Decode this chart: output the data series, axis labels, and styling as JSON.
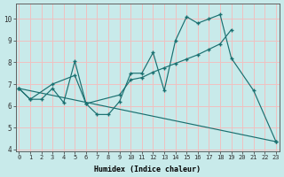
{
  "bg_color": "#c8eaea",
  "grid_color": "#f0c0c0",
  "line_color": "#1a7070",
  "xlabel": "Humidex (Indice chaleur)",
  "xlim": [
    -0.3,
    23.3
  ],
  "ylim": [
    3.9,
    10.7
  ],
  "xticks": [
    0,
    1,
    2,
    3,
    4,
    5,
    6,
    7,
    8,
    9,
    10,
    11,
    12,
    13,
    14,
    15,
    16,
    17,
    18,
    19,
    20,
    21,
    22,
    23
  ],
  "yticks": [
    4,
    5,
    6,
    7,
    8,
    9,
    10
  ],
  "line1_x": [
    0,
    1,
    2,
    3,
    4,
    5,
    6,
    7,
    8,
    9,
    10,
    11,
    12,
    13,
    14,
    15,
    16,
    17,
    18,
    19,
    21,
    23
  ],
  "line1_y": [
    6.8,
    6.3,
    6.3,
    6.8,
    6.15,
    8.05,
    6.1,
    5.6,
    5.6,
    6.2,
    7.5,
    7.5,
    8.45,
    6.7,
    9.0,
    10.1,
    9.8,
    10.0,
    10.2,
    8.2,
    6.7,
    4.35
  ],
  "line2_x": [
    0,
    1,
    3,
    5,
    6,
    9,
    10,
    11,
    12,
    13,
    14,
    15,
    16,
    17,
    18,
    19
  ],
  "line2_y": [
    6.8,
    6.3,
    7.0,
    7.4,
    6.1,
    6.5,
    7.2,
    7.3,
    7.55,
    7.75,
    7.95,
    8.15,
    8.35,
    8.6,
    8.85,
    9.5
  ],
  "line3_x": [
    0,
    23
  ],
  "line3_y": [
    6.8,
    4.35
  ]
}
